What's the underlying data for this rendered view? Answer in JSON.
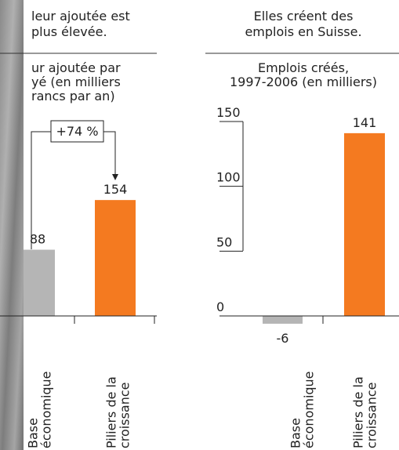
{
  "chart_data": [
    {
      "type": "bar",
      "title": [
        "leur ajoutée est",
        "plus élevée."
      ],
      "subtitle": [
        "ur ajoutée par",
        "yé (en milliers",
        "rancs par an)"
      ],
      "annotation": "+74 %",
      "categories": [
        [
          "Base",
          "économique"
        ],
        [
          "Piliers de la",
          "croissance"
        ]
      ],
      "values": [
        88,
        154
      ],
      "colors": [
        "#b5b5b5",
        "#f47a20"
      ]
    },
    {
      "type": "bar",
      "title": [
        "Elles créent des",
        "emplois en Suisse."
      ],
      "subtitle": [
        "Emplois créés,",
        "1997-2006 (en milliers)"
      ],
      "categories": [
        [
          "Base",
          "économique"
        ],
        [
          "Piliers de la",
          "croissance"
        ]
      ],
      "values": [
        -6,
        141
      ],
      "colors": [
        "#b5b5b5",
        "#f47a20"
      ],
      "ylim": [
        0,
        150
      ],
      "yticks": [
        0,
        50,
        100,
        150
      ]
    }
  ]
}
